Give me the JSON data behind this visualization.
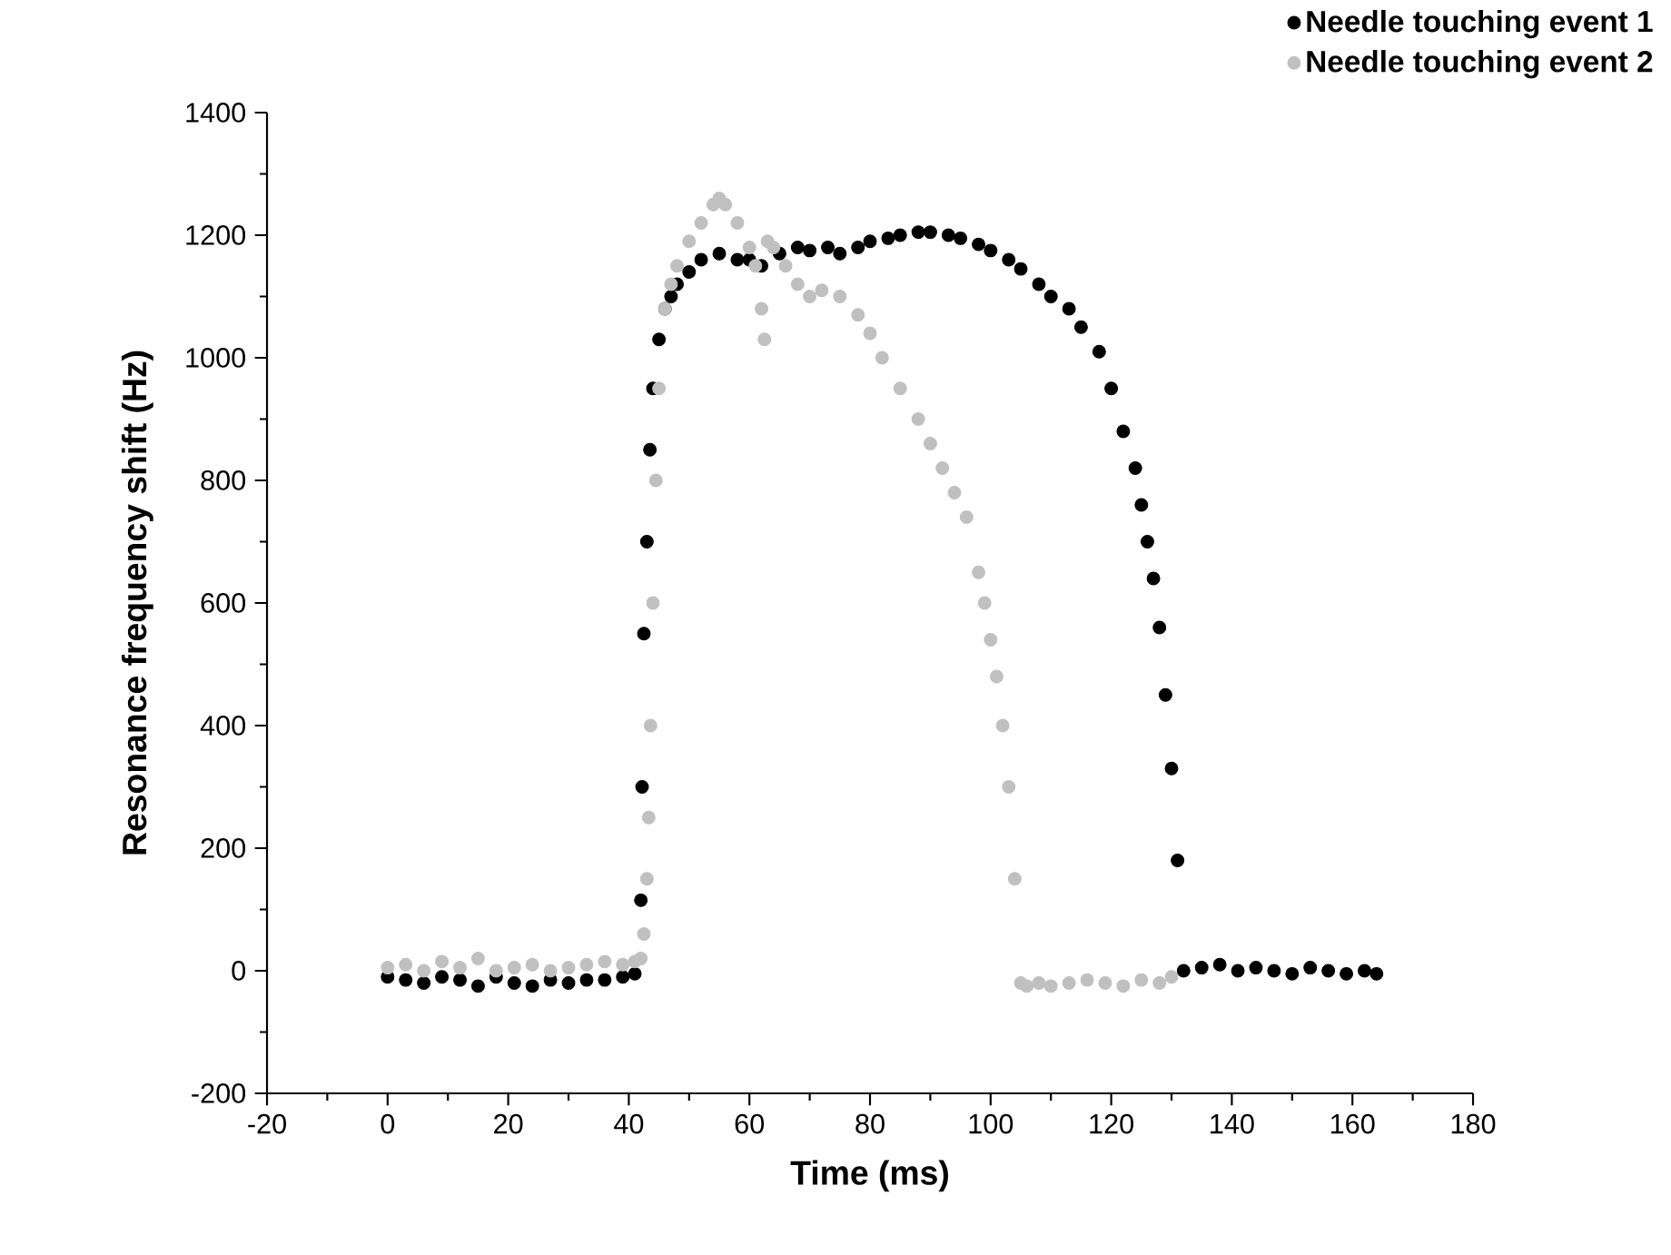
{
  "chart_data": {
    "type": "scatter",
    "xlabel": "Time (ms)",
    "ylabel": "Resonance frequency shift (Hz)",
    "xlim": [
      -20,
      180
    ],
    "ylim": [
      -200,
      1400
    ],
    "xticks": [
      -20,
      0,
      20,
      40,
      60,
      80,
      100,
      120,
      140,
      160,
      180
    ],
    "yticks": [
      -200,
      0,
      200,
      400,
      600,
      800,
      1000,
      1200,
      1400
    ],
    "marker": "circle",
    "legend": "top right",
    "grid": false,
    "series": [
      {
        "name": "Needle touching event 1",
        "color": "#000000",
        "x": [
          0,
          3,
          6,
          9,
          12,
          15,
          18,
          21,
          24,
          27,
          30,
          33,
          36,
          39,
          41,
          42,
          42.2,
          42.5,
          43,
          43.5,
          44,
          45,
          46,
          47,
          48,
          50,
          52,
          55,
          58,
          60,
          62,
          65,
          68,
          70,
          73,
          75,
          78,
          80,
          83,
          85,
          88,
          90,
          93,
          95,
          98,
          100,
          103,
          105,
          108,
          110,
          113,
          115,
          118,
          120,
          122,
          124,
          125,
          126,
          127,
          128,
          129,
          130,
          131,
          132,
          135,
          138,
          141,
          144,
          147,
          150,
          153,
          156,
          159,
          162,
          164
        ],
        "values": [
          -10,
          -15,
          -20,
          -10,
          -15,
          -25,
          -10,
          -20,
          -25,
          -15,
          -20,
          -15,
          -15,
          -10,
          -5,
          115,
          300,
          550,
          700,
          850,
          950,
          1030,
          1080,
          1100,
          1120,
          1140,
          1160,
          1170,
          1160,
          1160,
          1150,
          1170,
          1180,
          1175,
          1180,
          1170,
          1180,
          1190,
          1195,
          1200,
          1205,
          1205,
          1200,
          1195,
          1185,
          1175,
          1160,
          1145,
          1120,
          1100,
          1080,
          1050,
          1010,
          950,
          880,
          820,
          760,
          700,
          640,
          560,
          450,
          330,
          180,
          0,
          5,
          10,
          0,
          5,
          0,
          -5,
          5,
          0,
          -5,
          0,
          -5
        ]
      },
      {
        "name": "Needle touching event 2",
        "color": "#c0c0c0",
        "x": [
          0,
          3,
          6,
          9,
          12,
          15,
          18,
          21,
          24,
          27,
          30,
          33,
          36,
          39,
          41,
          42,
          42.5,
          43,
          43.3,
          43.6,
          44,
          44.5,
          45,
          46,
          47,
          48,
          50,
          52,
          54,
          55,
          56,
          58,
          60,
          61,
          62,
          62.5,
          63,
          64,
          66,
          68,
          70,
          72,
          75,
          78,
          80,
          82,
          85,
          88,
          90,
          92,
          94,
          96,
          98,
          99,
          100,
          101,
          102,
          103,
          104,
          105,
          106,
          108,
          110,
          113,
          116,
          119,
          122,
          125,
          128,
          130
        ],
        "values": [
          5,
          10,
          0,
          15,
          5,
          20,
          0,
          5,
          10,
          0,
          5,
          10,
          15,
          10,
          15,
          20,
          60,
          150,
          250,
          400,
          600,
          800,
          950,
          1080,
          1120,
          1150,
          1190,
          1220,
          1250,
          1260,
          1250,
          1220,
          1180,
          1150,
          1080,
          1030,
          1190,
          1180,
          1150,
          1120,
          1100,
          1110,
          1100,
          1070,
          1040,
          1000,
          950,
          900,
          860,
          820,
          780,
          740,
          650,
          600,
          540,
          480,
          400,
          300,
          150,
          -20,
          -25,
          -20,
          -25,
          -20,
          -15,
          -20,
          -25,
          -15,
          -20,
          -10
        ]
      }
    ]
  }
}
